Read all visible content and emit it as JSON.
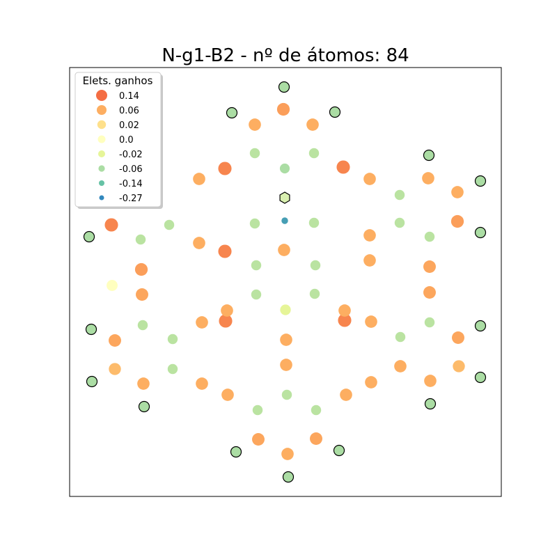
{
  "chart_data": {
    "type": "scatter",
    "title": "N-g1-B2 - nº de átomos: 84",
    "xlabel": "",
    "ylabel": "",
    "axes_ticks": false,
    "grid": false,
    "xlim": [
      0,
      620
    ],
    "ylim": [
      0,
      616
    ],
    "legend": {
      "title": "Elets. ganhos",
      "placement": "top-left",
      "entries": [
        {
          "label": "0.14",
          "value": 0.14,
          "color": "#f46d43"
        },
        {
          "label": "0.06",
          "value": 0.06,
          "color": "#fdae61"
        },
        {
          "label": "0.02",
          "value": 0.02,
          "color": "#fee08b"
        },
        {
          "label": "0.0",
          "value": 0.0,
          "color": "#ffffbf"
        },
        {
          "label": "-0.02",
          "value": -0.02,
          "color": "#e6f598"
        },
        {
          "label": "-0.06",
          "value": -0.06,
          "color": "#abdda4"
        },
        {
          "label": "-0.14",
          "value": -0.14,
          "color": "#66c2a5"
        },
        {
          "label": "-0.27",
          "value": -0.27,
          "color": "#3288bd"
        }
      ]
    },
    "points": [
      {
        "x": 308,
        "y": 588,
        "v": -0.06,
        "edge": true
      },
      {
        "x": 233,
        "y": 551,
        "v": -0.06,
        "edge": true
      },
      {
        "x": 381,
        "y": 552,
        "v": -0.06,
        "edge": true
      },
      {
        "x": 307,
        "y": 556,
        "v": 0.08
      },
      {
        "x": 266,
        "y": 534,
        "v": 0.06
      },
      {
        "x": 349,
        "y": 534,
        "v": 0.06
      },
      {
        "x": 266,
        "y": 493,
        "v": -0.05
      },
      {
        "x": 351,
        "y": 493,
        "v": -0.05
      },
      {
        "x": 223,
        "y": 471,
        "v": 0.11
      },
      {
        "x": 393,
        "y": 473,
        "v": 0.11
      },
      {
        "x": 186,
        "y": 456,
        "v": 0.06
      },
      {
        "x": 431,
        "y": 456,
        "v": 0.06
      },
      {
        "x": 309,
        "y": 471,
        "v": -0.06
      },
      {
        "x": 516,
        "y": 490,
        "v": -0.06,
        "edge": true
      },
      {
        "x": 590,
        "y": 453,
        "v": -0.06,
        "edge": true
      },
      {
        "x": 590,
        "y": 379,
        "v": -0.06,
        "edge": true
      },
      {
        "x": 515,
        "y": 457,
        "v": 0.06
      },
      {
        "x": 557,
        "y": 437,
        "v": 0.06
      },
      {
        "x": 474,
        "y": 433,
        "v": -0.05
      },
      {
        "x": 474,
        "y": 393,
        "v": -0.05
      },
      {
        "x": 557,
        "y": 395,
        "v": 0.08
      },
      {
        "x": 517,
        "y": 373,
        "v": -0.05
      },
      {
        "x": 517,
        "y": 330,
        "v": 0.07
      },
      {
        "x": 517,
        "y": 293,
        "v": 0.07
      },
      {
        "x": 431,
        "y": 375,
        "v": 0.06
      },
      {
        "x": 431,
        "y": 339,
        "v": 0.06
      },
      {
        "x": 28,
        "y": 373,
        "v": -0.06,
        "edge": true
      },
      {
        "x": 60,
        "y": 390,
        "v": 0.11
      },
      {
        "x": 102,
        "y": 369,
        "v": -0.05
      },
      {
        "x": 143,
        "y": 390,
        "v": -0.05
      },
      {
        "x": 186,
        "y": 364,
        "v": 0.06
      },
      {
        "x": 223,
        "y": 352,
        "v": 0.11
      },
      {
        "x": 103,
        "y": 326,
        "v": 0.08
      },
      {
        "x": 104,
        "y": 290,
        "v": 0.07
      },
      {
        "x": 308,
        "y": 354,
        "v": 0.06
      },
      {
        "x": 309,
        "y": 429,
        "v": -0.06,
        "hexagon": true
      },
      {
        "x": 309,
        "y": 396,
        "v": -0.22
      },
      {
        "x": 266,
        "y": 392,
        "v": -0.05
      },
      {
        "x": 351,
        "y": 393,
        "v": -0.05
      },
      {
        "x": 224,
        "y": 252,
        "v": 0.11
      },
      {
        "x": 395,
        "y": 253,
        "v": 0.11
      },
      {
        "x": 268,
        "y": 332,
        "v": -0.05
      },
      {
        "x": 353,
        "y": 332,
        "v": -0.05
      },
      {
        "x": 268,
        "y": 290,
        "v": -0.05
      },
      {
        "x": 352,
        "y": 291,
        "v": -0.05
      },
      {
        "x": 310,
        "y": 268,
        "v": -0.02
      },
      {
        "x": 190,
        "y": 250,
        "v": 0.06
      },
      {
        "x": 226,
        "y": 267,
        "v": 0.06
      },
      {
        "x": 395,
        "y": 267,
        "v": 0.06
      },
      {
        "x": 433,
        "y": 251,
        "v": 0.06
      },
      {
        "x": 311,
        "y": 225,
        "v": 0.06
      },
      {
        "x": 311,
        "y": 189,
        "v": 0.06
      },
      {
        "x": 31,
        "y": 240,
        "v": -0.06,
        "edge": true
      },
      {
        "x": 65,
        "y": 224,
        "v": 0.07
      },
      {
        "x": 105,
        "y": 246,
        "v": -0.05
      },
      {
        "x": 148,
        "y": 226,
        "v": -0.05
      },
      {
        "x": 148,
        "y": 183,
        "v": -0.05
      },
      {
        "x": 190,
        "y": 162,
        "v": 0.06
      },
      {
        "x": 227,
        "y": 146,
        "v": 0.06
      },
      {
        "x": 32,
        "y": 165,
        "v": -0.06,
        "edge": true
      },
      {
        "x": 65,
        "y": 183,
        "v": 0.05
      },
      {
        "x": 106,
        "y": 162,
        "v": 0.06
      },
      {
        "x": 107,
        "y": 129,
        "v": -0.06,
        "edge": true
      },
      {
        "x": 239,
        "y": 64,
        "v": -0.06,
        "edge": true
      },
      {
        "x": 271,
        "y": 82,
        "v": 0.07
      },
      {
        "x": 354,
        "y": 83,
        "v": 0.07
      },
      {
        "x": 387,
        "y": 66,
        "v": -0.06,
        "edge": true
      },
      {
        "x": 313,
        "y": 61,
        "v": 0.06
      },
      {
        "x": 314,
        "y": 28,
        "v": -0.06,
        "edge": true
      },
      {
        "x": 270,
        "y": 124,
        "v": -0.05
      },
      {
        "x": 354,
        "y": 124,
        "v": -0.05
      },
      {
        "x": 312,
        "y": 146,
        "v": -0.05
      },
      {
        "x": 397,
        "y": 146,
        "v": 0.06
      },
      {
        "x": 433,
        "y": 164,
        "v": 0.06
      },
      {
        "x": 475,
        "y": 187,
        "v": 0.06
      },
      {
        "x": 518,
        "y": 166,
        "v": 0.06
      },
      {
        "x": 475,
        "y": 229,
        "v": -0.05
      },
      {
        "x": 517,
        "y": 250,
        "v": -0.05
      },
      {
        "x": 558,
        "y": 228,
        "v": 0.07
      },
      {
        "x": 590,
        "y": 245,
        "v": -0.06,
        "edge": true
      },
      {
        "x": 590,
        "y": 171,
        "v": -0.06,
        "edge": true
      },
      {
        "x": 559,
        "y": 187,
        "v": 0.05
      },
      {
        "x": 518,
        "y": 133,
        "v": -0.06,
        "edge": true
      },
      {
        "x": 61,
        "y": 303,
        "v": 0.0
      }
    ]
  }
}
